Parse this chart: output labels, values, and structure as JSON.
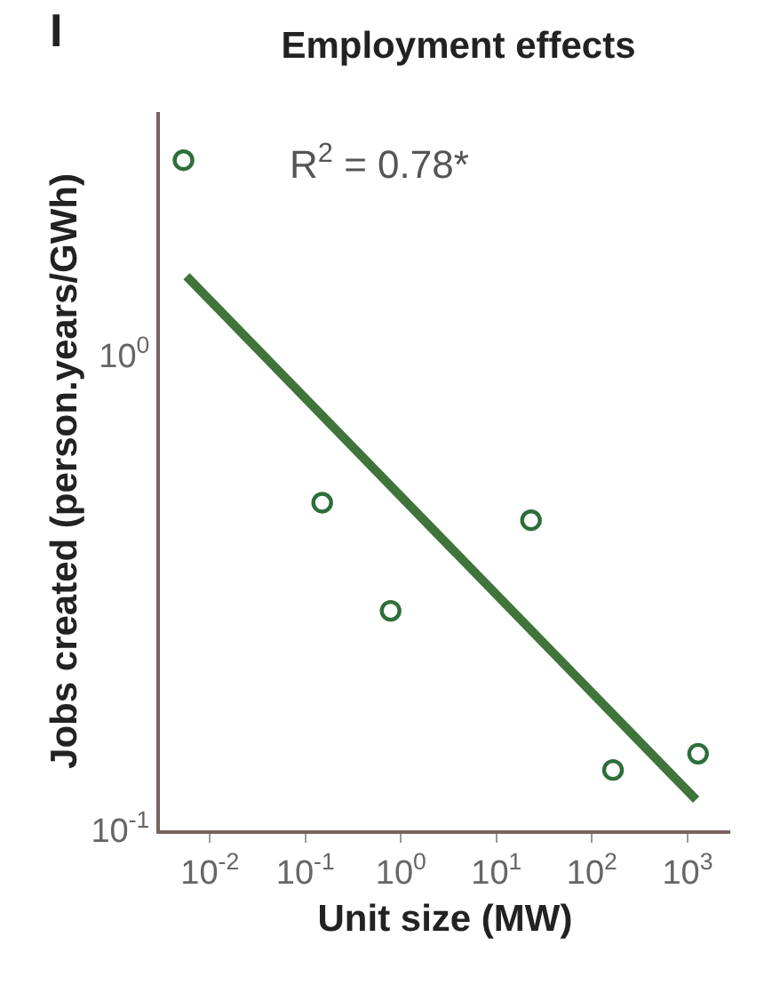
{
  "chart_data": {
    "type": "scatter",
    "title": "Employment effects",
    "xlabel": "Unit size (MW)",
    "ylabel": "Jobs created (person.years/GWh)",
    "annotations": [
      "I",
      "R$^{2}$ = 0.78*"
    ],
    "log": "xy",
    "grid": false,
    "xlim": [
      0.003,
      2800
    ],
    "ylim": [
      0.1,
      3.26
    ],
    "xticks": [
      {
        "value": 0.01,
        "label": "10$^{-2}$"
      },
      {
        "value": 0.1,
        "label": "10$^{-1}$"
      },
      {
        "value": 1,
        "label": "10$^{0}$"
      },
      {
        "value": 10,
        "label": "10$^{1}$"
      },
      {
        "value": 100,
        "label": "10$^{2}$"
      },
      {
        "value": 1000,
        "label": "10$^{3}$"
      }
    ],
    "yticks": [
      {
        "value": 0.1,
        "label": "10$^{-1}$"
      },
      {
        "value": 1,
        "label": "10$^{0}$"
      }
    ],
    "series": [
      {
        "marker": "circle",
        "color": "#2e6e3a",
        "x": [
          0.0053,
          0.15,
          0.78,
          23,
          166,
          1290
        ],
        "values": [
          2.58,
          0.49,
          0.29,
          0.45,
          0.134,
          0.145
        ]
      },
      {
        "type": "line",
        "marker": "none",
        "line_style": "solid",
        "color": "#3f743a",
        "x": [
          0.0057,
          1230
        ],
        "values": [
          1.47,
          0.116
        ]
      }
    ]
  }
}
